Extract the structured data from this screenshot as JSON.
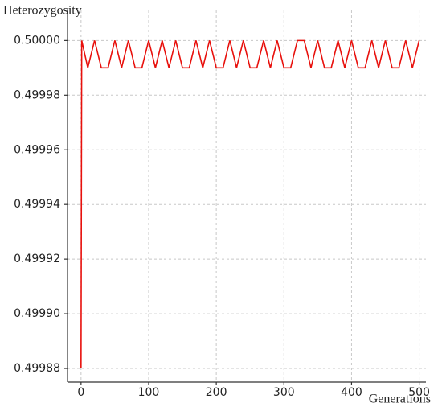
{
  "chart_data": {
    "type": "line",
    "y_label": "Heterozygosity",
    "x_label": "Generations",
    "x": [
      0,
      1,
      10,
      20,
      30,
      40,
      50,
      60,
      70,
      80,
      90,
      100,
      110,
      120,
      130,
      140,
      150,
      160,
      170,
      180,
      190,
      200,
      210,
      220,
      230,
      240,
      250,
      260,
      270,
      280,
      290,
      300,
      310,
      320,
      330,
      340,
      350,
      360,
      370,
      380,
      390,
      400,
      410,
      420,
      430,
      440,
      450,
      460,
      470,
      480,
      490,
      500
    ],
    "series": [
      {
        "color": "#e8100c",
        "values": [
          0.49988,
          0.5,
          0.49999,
          0.5,
          0.49999,
          0.49999,
          0.5,
          0.49999,
          0.5,
          0.49999,
          0.49999,
          0.5,
          0.49999,
          0.5,
          0.49999,
          0.5,
          0.49999,
          0.49999,
          0.5,
          0.49999,
          0.5,
          0.49999,
          0.49999,
          0.5,
          0.49999,
          0.5,
          0.49999,
          0.49999,
          0.5,
          0.49999,
          0.5,
          0.49999,
          0.49999,
          0.5,
          0.5,
          0.49999,
          0.5,
          0.49999,
          0.49999,
          0.5,
          0.49999,
          0.5,
          0.49999,
          0.49999,
          0.5,
          0.49999,
          0.5,
          0.49999,
          0.49999,
          0.5,
          0.49999,
          0.5
        ]
      }
    ],
    "xlim": [
      -20,
      510
    ],
    "ylim": [
      0.499875,
      0.500011
    ],
    "xticks": [
      0,
      100,
      200,
      300,
      400,
      500
    ],
    "yticks": [
      0.49988,
      {
        "value": 0.4999,
        "label": "0.49990"
      },
      0.49992,
      0.49994,
      0.49996,
      0.49998,
      {
        "value": 0.5,
        "label": "0.50000"
      }
    ],
    "grid": true
  }
}
